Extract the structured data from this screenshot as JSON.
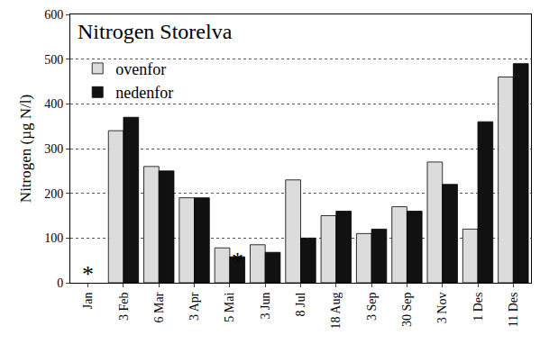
{
  "chart_data": {
    "type": "bar",
    "title": "Nitrogen Storelva",
    "y_label": "Nitrogen (µg N/l)",
    "categories": [
      "Jan",
      "3 Feb",
      "6 Mar",
      "3 Apr",
      "5 Mai",
      "3 Jun",
      "8 Jul",
      "18 Aug",
      "3 Sep",
      "30 Sep",
      "3 Nov",
      "1 Des",
      "11 Des"
    ],
    "series": [
      {
        "name": "ovenfor",
        "color": "#dcdcdc",
        "values": [
          null,
          340,
          260,
          190,
          78,
          85,
          230,
          150,
          110,
          170,
          270,
          120,
          460
        ]
      },
      {
        "name": "nedenfor",
        "color": "#111111",
        "values": [
          null,
          370,
          250,
          190,
          58,
          68,
          100,
          160,
          120,
          160,
          220,
          360,
          490
        ]
      }
    ],
    "annotations": [
      {
        "text": "*",
        "category": "Jan",
        "y": 20
      },
      {
        "text": "*",
        "category": "5 Mai",
        "series": "nedenfor",
        "y": 50
      }
    ],
    "ylim": [
      0,
      600
    ],
    "yticks": [
      0,
      100,
      200,
      300,
      400,
      500,
      600
    ],
    "grid": true,
    "legend": "top left"
  }
}
